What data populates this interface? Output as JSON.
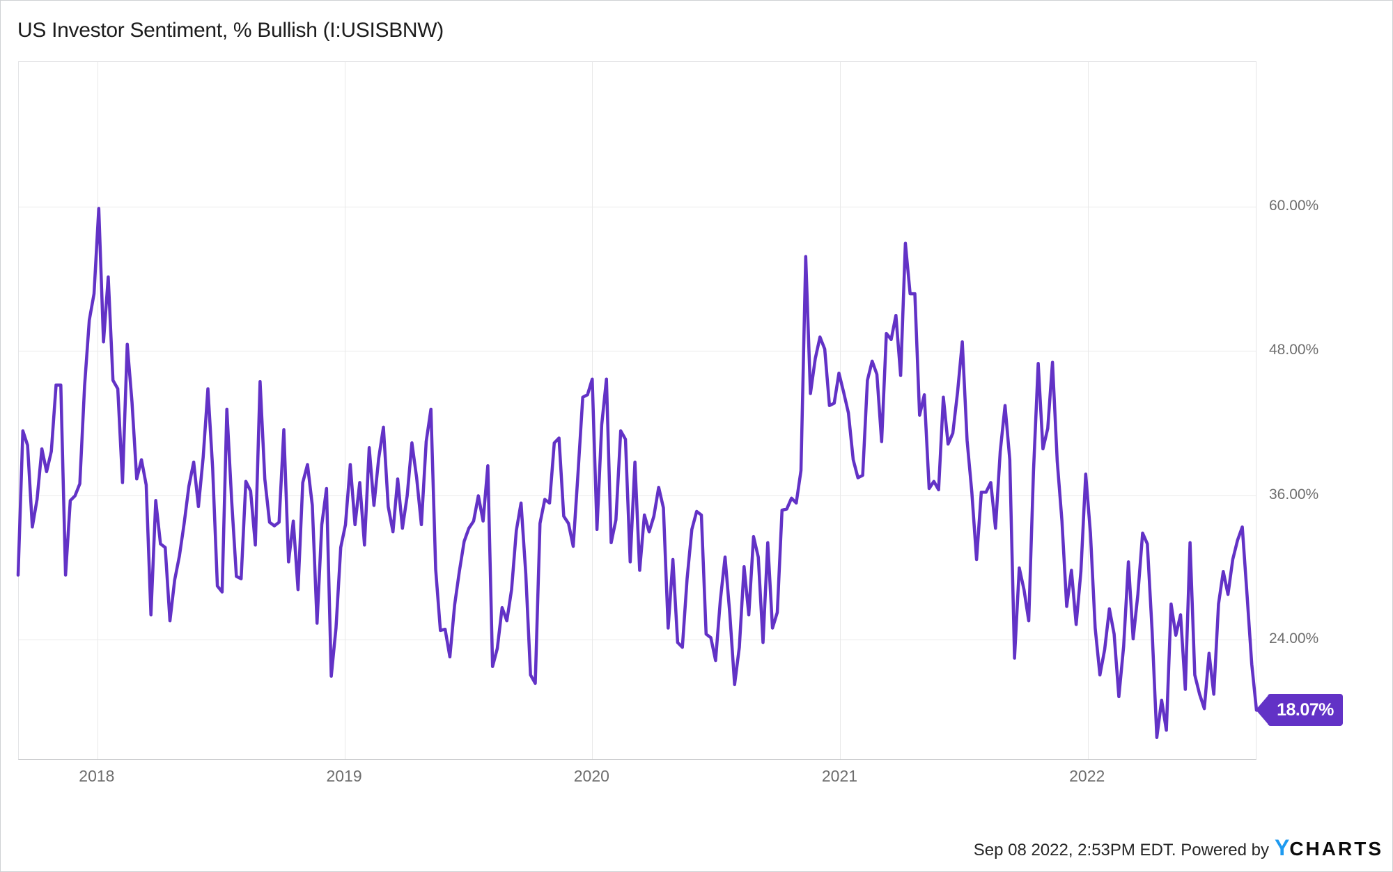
{
  "title": "US Investor Sentiment, % Bullish (I:USISBNW)",
  "badge": {
    "label": "18.07%"
  },
  "y_axis": {
    "ticks": [
      {
        "label": "60.00%",
        "value": 60
      },
      {
        "label": "48.00%",
        "value": 48
      },
      {
        "label": "36.00%",
        "value": 36
      },
      {
        "label": "24.00%",
        "value": 24
      }
    ]
  },
  "x_axis": {
    "ticks": [
      {
        "label": "2018",
        "week": 16.57
      },
      {
        "label": "2019",
        "week": 68.71
      },
      {
        "label": "2020",
        "week": 120.86
      },
      {
        "label": "2021",
        "week": 173.14
      },
      {
        "label": "2022",
        "week": 225.29
      }
    ]
  },
  "footer": {
    "attribution": "Sep 08 2022, 2:53PM EDT. Powered by",
    "logo": {
      "y": "Y",
      "charts": "CHARTS"
    }
  },
  "colors": {
    "line": "#6232c6",
    "badge_bg": "#6232c6",
    "badge_text": "#ffffff",
    "grid": "#e9e9e9",
    "axis_text": "#6e6e6e",
    "title_text": "#1c1c1c",
    "logo_blue": "#1e9af0",
    "logo_dark": "#0b0b0b",
    "plot_border": "#e3e4e6",
    "axis_line": "#c6c8ca"
  },
  "chart_data": {
    "type": "line",
    "title": "US Investor Sentiment, % Bullish (I:USISBNW)",
    "series_name": "US Investor Sentiment, % Bullish",
    "unit": "percent",
    "frequency": "weekly",
    "x_start": "2017-09-07",
    "x_end": "2022-09-08",
    "last_value": 18.07,
    "y_gridlines": [
      60,
      48,
      36,
      24
    ],
    "ylim": [
      13.9,
      72.0
    ],
    "grid": true,
    "legend_position": "none",
    "values": [
      29.3,
      41.3,
      40.1,
      33.3,
      35.6,
      39.8,
      37.9,
      39.6,
      45.1,
      45.1,
      29.3,
      35.5,
      35.9,
      36.9,
      45.0,
      50.5,
      52.7,
      59.8,
      48.7,
      54.1,
      45.5,
      44.8,
      37.0,
      48.5,
      43.7,
      37.3,
      38.9,
      36.8,
      26.0,
      35.5,
      31.9,
      31.6,
      25.5,
      28.9,
      30.9,
      33.6,
      36.7,
      38.7,
      35.0,
      39.1,
      44.8,
      38.2,
      28.4,
      27.9,
      43.1,
      35.5,
      29.2,
      29.0,
      37.1,
      36.3,
      31.8,
      45.4,
      37.3,
      33.7,
      33.4,
      33.7,
      41.4,
      30.4,
      33.8,
      28.1,
      37.0,
      38.5,
      35.1,
      25.3,
      33.5,
      36.5,
      20.9,
      24.9,
      31.6,
      33.5,
      38.5,
      33.5,
      37.0,
      31.8,
      39.9,
      35.1,
      39.0,
      41.6,
      35.0,
      32.9,
      37.3,
      33.2,
      35.9,
      40.3,
      37.4,
      33.5,
      40.4,
      43.1,
      29.8,
      24.7,
      24.8,
      22.5,
      26.8,
      29.6,
      32.1,
      33.2,
      33.8,
      35.9,
      33.8,
      38.4,
      21.7,
      23.2,
      26.6,
      25.5,
      28.1,
      33.0,
      35.3,
      29.4,
      21.0,
      20.3,
      33.6,
      35.6,
      35.3,
      40.3,
      40.7,
      34.2,
      33.6,
      31.7,
      37.7,
      44.1,
      44.3,
      45.6,
      33.1,
      41.8,
      45.6,
      32.0,
      33.9,
      41.3,
      40.6,
      30.4,
      38.7,
      29.7,
      34.3,
      32.9,
      34.2,
      36.6,
      34.9,
      24.9,
      30.6,
      23.7,
      23.3,
      29.0,
      33.1,
      34.6,
      34.3,
      24.4,
      24.1,
      22.2,
      27.2,
      30.8,
      26.1,
      20.2,
      23.3,
      30.0,
      26.0,
      32.5,
      30.8,
      23.7,
      32.0,
      24.9,
      26.2,
      34.7,
      34.8,
      35.7,
      35.3,
      38.0,
      55.8,
      44.4,
      47.3,
      49.1,
      48.1,
      43.4,
      43.6,
      46.1,
      44.5,
      42.8,
      38.9,
      37.4,
      37.6,
      45.5,
      47.1,
      46.0,
      40.4,
      49.4,
      48.9,
      50.9,
      45.9,
      56.9,
      52.7,
      52.7,
      42.6,
      44.3,
      36.5,
      37.1,
      36.4,
      44.1,
      40.2,
      41.1,
      44.5,
      48.7,
      40.5,
      36.2,
      30.6,
      36.2,
      36.2,
      37.0,
      33.2,
      39.6,
      43.4,
      38.9,
      22.4,
      29.9,
      28.1,
      25.5,
      37.9,
      46.9,
      39.8,
      41.5,
      47.0,
      38.8,
      33.8,
      26.7,
      29.7,
      25.2,
      29.6,
      37.7,
      32.8,
      24.9,
      21.0,
      23.1,
      26.5,
      24.4,
      19.2,
      23.4,
      30.4,
      24.0,
      27.7,
      32.8,
      31.9,
      24.7,
      15.8,
      18.9,
      16.4,
      26.9,
      24.3,
      26.0,
      19.8,
      32.0,
      21.0,
      19.4,
      18.2,
      22.8,
      19.4,
      26.9,
      29.6,
      27.7,
      30.6,
      32.2,
      33.3,
      27.7,
      21.9,
      18.07
    ]
  }
}
